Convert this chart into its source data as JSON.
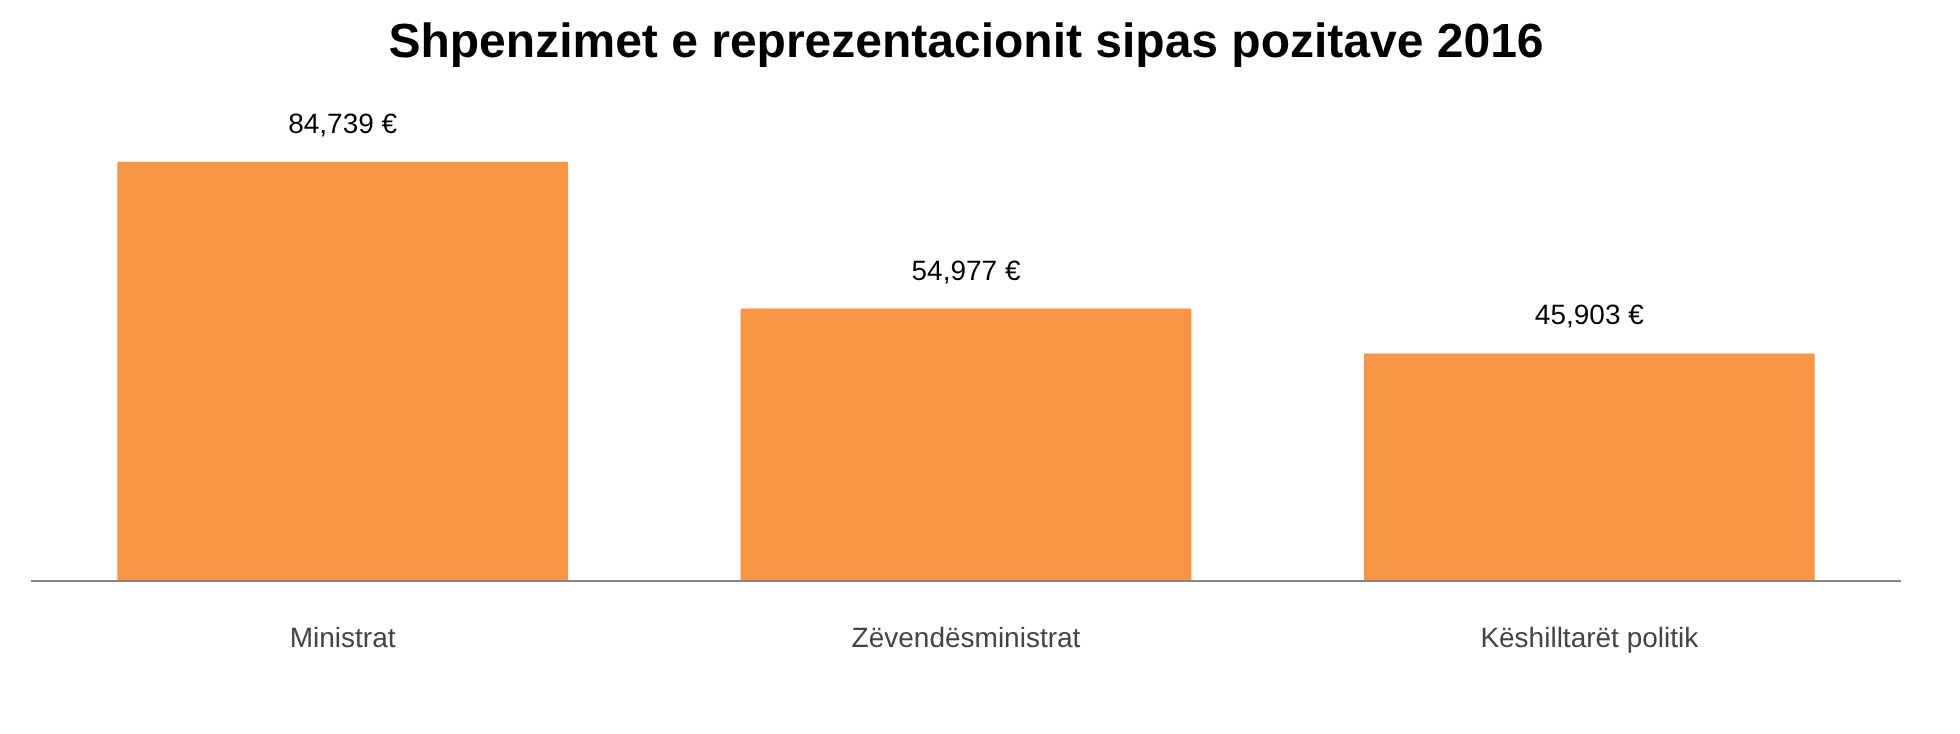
{
  "chart_data": {
    "type": "bar",
    "title": "Shpenzimet e reprezentacionit sipas pozitave 2016",
    "categories": [
      "Ministrat",
      "Zëvendësministrat",
      "Këshilltarët politik"
    ],
    "values": [
      84739,
      54977,
      45903
    ],
    "value_labels": [
      "84,739 €",
      "54,977 €",
      "45,903 €"
    ],
    "color": "#f79646"
  }
}
